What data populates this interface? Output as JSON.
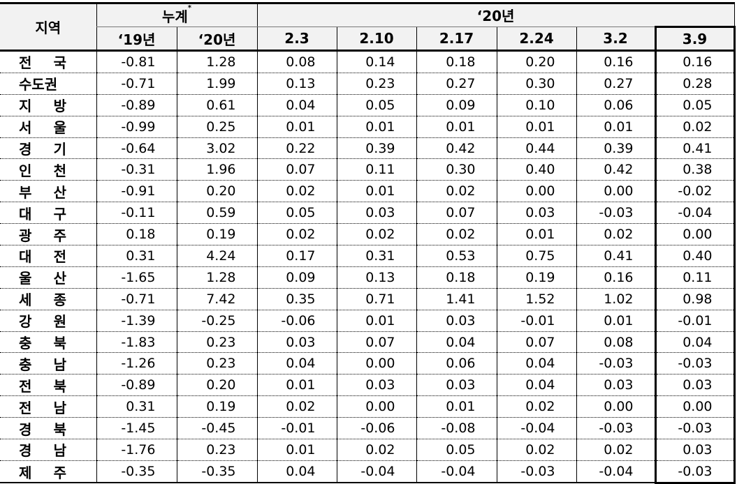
{
  "header": {
    "region": "지역",
    "cumulative": "누계",
    "cumulative_mark": "*",
    "year_group": "‘20년",
    "columns": [
      "‘19년",
      "‘20년",
      "2.3",
      "2.10",
      "2.17",
      "2.24",
      "3.2",
      "3.9"
    ]
  },
  "rows": [
    {
      "region": "전 국",
      "values": [
        "-0.81",
        "1.28",
        "0.08",
        "0.14",
        "0.18",
        "0.20",
        "0.16",
        "0.16"
      ]
    },
    {
      "region": "수도권",
      "values": [
        "-0.71",
        "1.99",
        "0.13",
        "0.23",
        "0.27",
        "0.30",
        "0.27",
        "0.28"
      ]
    },
    {
      "region": "지 방",
      "values": [
        "-0.89",
        "0.61",
        "0.04",
        "0.05",
        "0.09",
        "0.10",
        "0.06",
        "0.05"
      ]
    },
    {
      "region": "서 울",
      "values": [
        "-0.99",
        "0.25",
        "0.01",
        "0.01",
        "0.01",
        "0.01",
        "0.01",
        "0.02"
      ]
    },
    {
      "region": "경 기",
      "values": [
        "-0.64",
        "3.02",
        "0.22",
        "0.39",
        "0.42",
        "0.44",
        "0.39",
        "0.41"
      ]
    },
    {
      "region": "인 천",
      "values": [
        "-0.31",
        "1.96",
        "0.07",
        "0.11",
        "0.30",
        "0.40",
        "0.42",
        "0.38"
      ]
    },
    {
      "region": "부 산",
      "values": [
        "-0.91",
        "0.20",
        "0.02",
        "0.01",
        "0.02",
        "0.00",
        "0.00",
        "-0.02"
      ]
    },
    {
      "region": "대 구",
      "values": [
        "-0.11",
        "0.59",
        "0.05",
        "0.03",
        "0.07",
        "0.03",
        "-0.03",
        "-0.04"
      ]
    },
    {
      "region": "광 주",
      "values": [
        "0.18",
        "0.19",
        "0.02",
        "0.02",
        "0.02",
        "0.01",
        "0.02",
        "0.00"
      ]
    },
    {
      "region": "대 전",
      "values": [
        "0.31",
        "4.24",
        "0.17",
        "0.31",
        "0.53",
        "0.75",
        "0.41",
        "0.40"
      ]
    },
    {
      "region": "울 산",
      "values": [
        "-1.65",
        "1.28",
        "0.09",
        "0.13",
        "0.18",
        "0.19",
        "0.16",
        "0.11"
      ]
    },
    {
      "region": "세 종",
      "values": [
        "-0.71",
        "7.42",
        "0.35",
        "0.71",
        "1.41",
        "1.52",
        "1.02",
        "0.98"
      ]
    },
    {
      "region": "강 원",
      "values": [
        "-1.39",
        "-0.25",
        "-0.06",
        "0.01",
        "0.03",
        "-0.01",
        "0.01",
        "-0.01"
      ]
    },
    {
      "region": "충 북",
      "values": [
        "-1.83",
        "0.23",
        "0.03",
        "0.07",
        "0.04",
        "0.07",
        "0.08",
        "0.04"
      ]
    },
    {
      "region": "충 남",
      "values": [
        "-1.26",
        "0.23",
        "0.04",
        "0.00",
        "0.06",
        "0.04",
        "-0.03",
        "-0.03"
      ]
    },
    {
      "region": "전 북",
      "values": [
        "-0.89",
        "0.20",
        "0.01",
        "0.03",
        "0.03",
        "0.04",
        "0.03",
        "0.03"
      ]
    },
    {
      "region": "전 남",
      "values": [
        "0.31",
        "0.19",
        "0.02",
        "0.00",
        "0.01",
        "0.02",
        "0.00",
        "0.00"
      ]
    },
    {
      "region": "경 북",
      "values": [
        "-1.45",
        "-0.45",
        "-0.01",
        "-0.06",
        "-0.08",
        "-0.04",
        "-0.03",
        "-0.03"
      ]
    },
    {
      "region": "경 남",
      "values": [
        "-1.76",
        "0.23",
        "0.01",
        "0.02",
        "0.05",
        "0.02",
        "0.02",
        "0.03"
      ]
    },
    {
      "region": "제 주",
      "values": [
        "-0.35",
        "-0.35",
        "0.04",
        "-0.04",
        "-0.04",
        "-0.03",
        "-0.04",
        "-0.03"
      ]
    }
  ]
}
